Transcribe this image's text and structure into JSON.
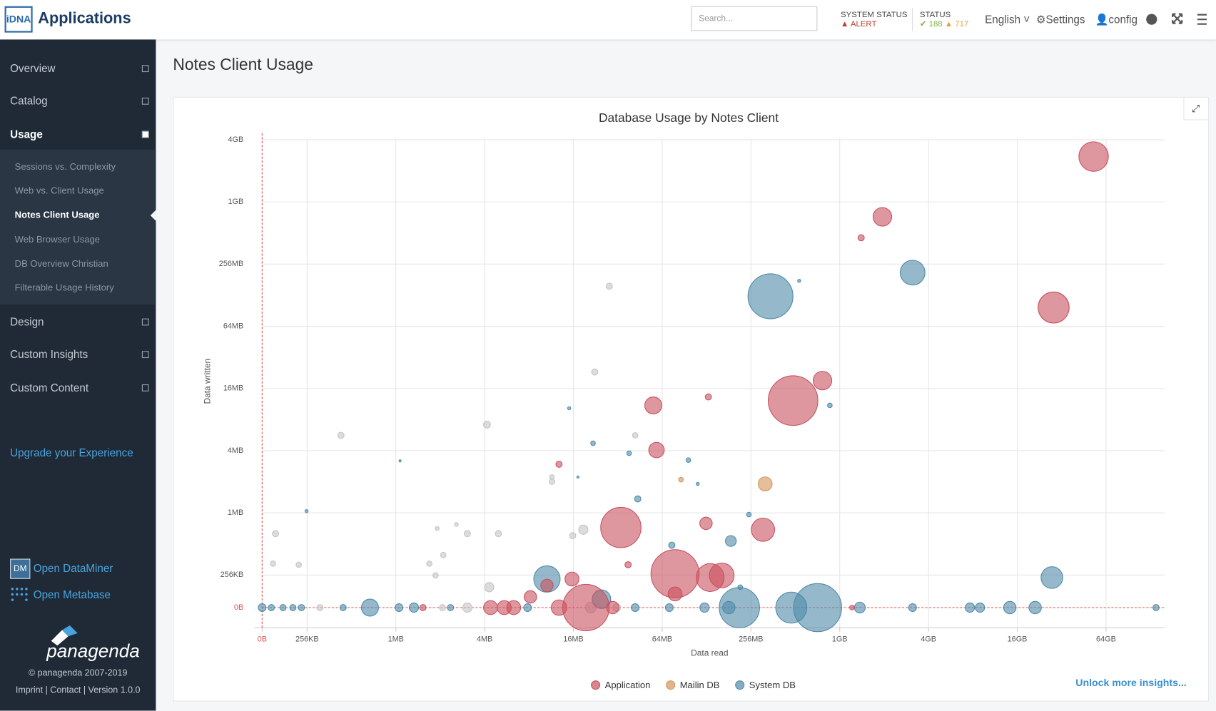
{
  "header": {
    "logo": "iDNA",
    "app_name": "Applications",
    "search_placeholder": "Search...",
    "system_status_label": "SYSTEM STATUS",
    "system_status_value": "ALERT",
    "status_label": "STATUS",
    "status_ok": "188",
    "status_warn": "717",
    "language": "English",
    "settings": "Settings",
    "user": "config"
  },
  "sidebar": {
    "menu_top": [
      {
        "label": "Overview"
      },
      {
        "label": "Catalog"
      },
      {
        "label": "Usage",
        "active": true
      }
    ],
    "submenu": [
      {
        "label": "Sessions vs. Complexity"
      },
      {
        "label": "Web vs. Client Usage"
      },
      {
        "label": "Notes Client Usage",
        "active": true
      },
      {
        "label": "Web Browser Usage"
      },
      {
        "label": "DB Overview Christian"
      },
      {
        "label": "Filterable Usage History"
      }
    ],
    "menu_bottom": [
      {
        "label": "Design"
      },
      {
        "label": "Custom Insights"
      },
      {
        "label": "Custom Content"
      }
    ],
    "upgrade": "Upgrade your Experience",
    "dataminer_icon": "DM",
    "open_dataminer": "Open DataMiner",
    "open_metabase": "Open Metabase",
    "brand": "panagenda",
    "copyright": "© panagenda 2007-2019",
    "footer_links": "Imprint | Contact | Version 1.0.0"
  },
  "page_title": "Notes Client Usage",
  "unlock": "Unlock more insights...",
  "chart_data": {
    "type": "bubble",
    "title": "Database Usage by Notes Client",
    "x_label": "Data read",
    "y_label": "Data written",
    "log_scale": true,
    "grid": true,
    "xlim": [
      0,
      172000000000
    ],
    "ylim": [
      0,
      4390000000
    ],
    "xticks": [
      {
        "value": 0,
        "label": "0B"
      },
      {
        "value": 262144,
        "label": "256KB"
      },
      {
        "value": 1048576,
        "label": "1MB"
      },
      {
        "value": 4194304,
        "label": "4MB"
      },
      {
        "value": 16777216,
        "label": "16MB"
      },
      {
        "value": 67108864,
        "label": "64MB"
      },
      {
        "value": 268435456,
        "label": "256MB"
      },
      {
        "value": 1073741824,
        "label": "1GB"
      },
      {
        "value": 4294967296,
        "label": "4GB"
      },
      {
        "value": 17179869184,
        "label": "16GB"
      },
      {
        "value": 68719476736,
        "label": "64GB"
      }
    ],
    "yticks": [
      {
        "value": 0,
        "label": "0B"
      },
      {
        "value": 262144,
        "label": "256KB"
      },
      {
        "value": 1048576,
        "label": "1MB"
      },
      {
        "value": 4194304,
        "label": "4MB"
      },
      {
        "value": 16777216,
        "label": "16MB"
      },
      {
        "value": 67108864,
        "label": "64MB"
      },
      {
        "value": 268435456,
        "label": "256MB"
      },
      {
        "value": 1073741824,
        "label": "1GB"
      },
      {
        "value": 4294967296,
        "label": "4GB"
      }
    ],
    "series": [
      {
        "name": "Application",
        "color": "#c9515f",
        "x": [
          56600000000,
          2090000000,
          1500000000,
          30300000000,
          518000000,
          820000000,
          58400000,
          138000000,
          61400000,
          13400000,
          35200000,
          133000000,
          324000000,
          82000000,
          142000000,
          170000000,
          82000000,
          39400000,
          16400000,
          20400000,
          8570000,
          11100000,
          13400000,
          4600000,
          5700000,
          6600000,
          1600000,
          31000000,
          1300000000
        ],
        "y": [
          2950000000,
          770000000,
          483000000,
          102000000,
          12800000,
          20000000,
          11500000,
          13900000,
          4250000,
          3100000,
          756000,
          830000,
          720000,
          270000,
          248000,
          260000,
          172000,
          330000,
          240000,
          0,
          161000,
          208000,
          0,
          0,
          0,
          0,
          0,
          0,
          0
        ],
        "sizes": [
          361,
          144,
          16,
          400,
          1024,
          144,
          121,
          16,
          100,
          16,
          676,
          64,
          225,
          961,
          324,
          256,
          81,
          16,
          81,
          900,
          64,
          64,
          100,
          81,
          81,
          81,
          16,
          64,
          9
        ]
      },
      {
        "name": "Mailin DB",
        "color": "#d4955a",
        "x": [
          335000000,
          90000000
        ],
        "y": [
          2000000,
          2200000
        ],
        "sizes": [
          81,
          9
        ]
      },
      {
        "name": "System DB",
        "color": "#4f8aa8",
        "x": [
          364000000,
          3350000000,
          570000000,
          920000000,
          15700000,
          22800000,
          40000000,
          101000000,
          117000000,
          45800000,
          260000000,
          196000000,
          78000000,
          11100000,
          26000000,
          29500000000,
          1120000,
          260000,
          18000000,
          227000000,
          224000000,
          504000000,
          760000000,
          700000,
          190000000,
          130000000,
          1470000000,
          3350000000,
          8200000000,
          9600000000,
          15300000000,
          22700000000,
          150000000000,
          75000000,
          44000000,
          1390000,
          1100000,
          460000,
          2460000,
          0,
          150000,
          180000,
          210000,
          240000,
          8200000
        ],
        "y": [
          131000000,
          222000000,
          185000000,
          11500000,
          10800000,
          4950000,
          3960000,
          3400000,
          2000000,
          1430000,
          1010000,
          560000,
          510000,
          240000,
          153000,
          248000,
          3340000,
          1090000,
          2330000,
          200000,
          0,
          0,
          0,
          0,
          0,
          0,
          0,
          0,
          0,
          0,
          0,
          0,
          0,
          0,
          0,
          0,
          0,
          0,
          0,
          0,
          0,
          0,
          0,
          0,
          0
        ],
        "sizes": [
          841,
          256,
          4,
          9,
          4,
          9,
          9,
          9,
          4,
          16,
          9,
          49,
          16,
          289,
          144,
          196,
          2,
          4,
          2,
          9,
          676,
          400,
          961,
          121,
          64,
          36,
          49,
          25,
          36,
          36,
          64,
          64,
          16,
          25,
          25,
          36,
          25,
          16,
          16,
          25,
          16,
          16,
          16,
          16,
          25
        ]
      },
      {
        "color": "#c4c4c4",
        "x": [
          29400000,
          23400000,
          4350000,
          445000,
          44000000,
          12000000,
          12000000,
          19600000,
          16600000,
          160000,
          3200000,
          5200000,
          2000000,
          2700000,
          154000,
          230000,
          2200000,
          1770000,
          1950000,
          4500000,
          3200000,
          22000000,
          320000,
          2170000,
          33000000
        ],
        "y": [
          164000000,
          24200000,
          7500000,
          5900000,
          5900000,
          2330000,
          2100000,
          720000,
          630000,
          660000,
          660000,
          660000,
          740000,
          810000,
          338000,
          330000,
          410000,
          338000,
          260000,
          200000,
          0,
          0,
          0,
          0,
          0
        ],
        "sizes": [
          16,
          16,
          20,
          16,
          12,
          9,
          12,
          36,
          16,
          16,
          16,
          16,
          6,
          6,
          12,
          12,
          12,
          12,
          12,
          36,
          36,
          49,
          16,
          16,
          25
        ]
      }
    ]
  }
}
